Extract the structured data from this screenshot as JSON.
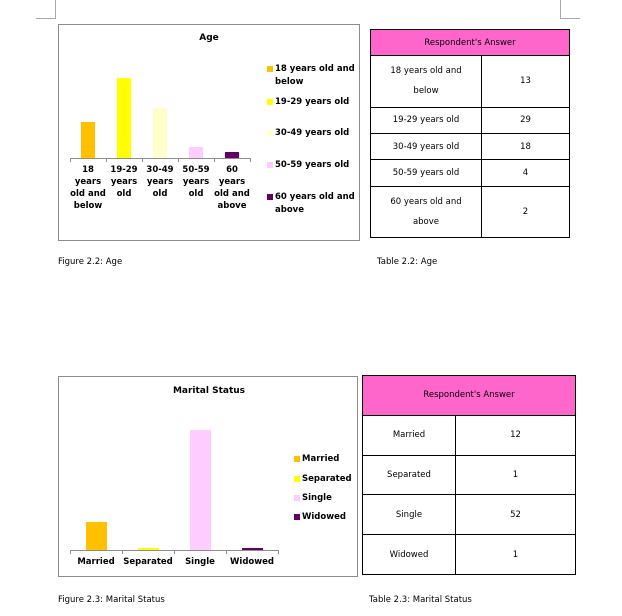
{
  "colors": {
    "header": "#ff66cc"
  },
  "chart_data": [
    {
      "type": "bar",
      "title": "Age",
      "categories": [
        "18 years old and below",
        "19-29 years old",
        "30-49 years old",
        "50-59 years old",
        "60 years old and above"
      ],
      "values": [
        13,
        29,
        18,
        4,
        2
      ],
      "colors": [
        "#ffc000",
        "#ffff00",
        "#ffffcc",
        "#ffccff",
        "#660066"
      ],
      "legend": "right",
      "grid": false
    },
    {
      "type": "bar",
      "title": "Marital Status",
      "categories": [
        "Married",
        "Separated",
        "Single",
        "Widowed"
      ],
      "values": [
        12,
        1,
        52,
        1
      ],
      "colors": [
        "#ffc000",
        "#ffff00",
        "#ffccff",
        "#660066"
      ],
      "legend": "right",
      "grid": false
    }
  ],
  "tables": [
    {
      "header": "Respondent's Answer",
      "rows": [
        [
          "18 years old and below",
          "13"
        ],
        [
          "19-29 years old",
          "29"
        ],
        [
          "30-49 years old",
          "18"
        ],
        [
          "50-59 years old",
          "4"
        ],
        [
          "60 years old and above",
          "2"
        ]
      ]
    },
    {
      "header": "Respondent's Answer",
      "rows": [
        [
          "Married",
          "12"
        ],
        [
          "Separated",
          "1"
        ],
        [
          "Single",
          "52"
        ],
        [
          "Widowed",
          "1"
        ]
      ]
    }
  ],
  "captions": {
    "fig1": "Figure 2.2: Age",
    "tab1": "Table 2.2: Age",
    "fig2": "Figure 2.3: Marital Status",
    "tab2": "Table 2.3: Marital Status"
  }
}
